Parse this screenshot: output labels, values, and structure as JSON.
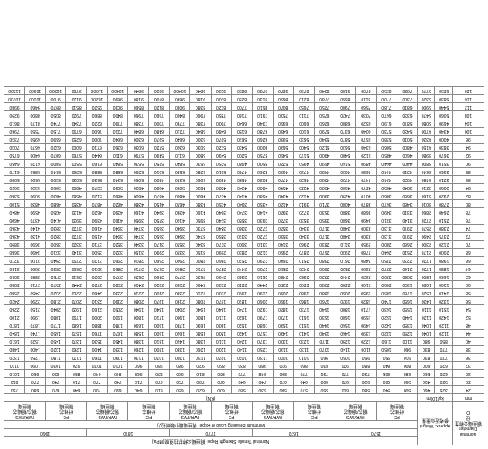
{
  "header": {
    "diameter_en": "Nominal Diameter",
    "diameter_cn": "钢丝绳公称直径",
    "weight_en": "Approx. Weight",
    "weight_cn": "参考近似重量",
    "strength_en": "Nominal Tensile Strength Rope",
    "strength_cn": "钢丝绳公称抗拉强度(MPa)",
    "breaking_en": "Minimum Breaking Load of Rope",
    "breaking_cn": "钢丝绳最小破断拉力",
    "d_symbol": "D",
    "unit_d": "mm",
    "unit_w": "kg/100m",
    "unit_load": "(KN)",
    "strengths": [
      "1570",
      "1670",
      "1770",
      "1870",
      "1960"
    ],
    "fc_en": "FC",
    "fc_cn": "纤维芯",
    "iwr_en": "IWR/IWS",
    "iwr_cn": "钢芯/钢绳芯",
    "rope_cn": "钢丝绳"
  },
  "rows": [
    {
      "d": "24",
      "w": [
        "325",
        "460"
      ],
      "v": [
        "500",
        "540",
        "580",
        "600",
        "550",
        "570",
        "580",
        "630",
        "580",
        "600",
        "620",
        "650",
        "610",
        "640",
        "650",
        "700",
        "640",
        "670",
        "680",
        "750"
      ]
    },
    {
      "d": "26",
      "w": [
        "520",
        "450"
      ],
      "v": [
        "560",
        "600",
        "630",
        "670",
        "600",
        "640",
        "670",
        "740",
        "640",
        "670",
        "700",
        "750",
        "670",
        "710",
        "740",
        "770",
        "710",
        "740",
        "770",
        "810"
      ]
    },
    {
      "d": "30",
      "w": [
        "620",
        "560"
      ],
      "v": [
        "680",
        "605",
        "730",
        "770",
        "730",
        "770",
        "800",
        "848",
        "770",
        "820",
        "810",
        "900",
        "820",
        "968",
        "840",
        "940",
        "850",
        "900",
        "950",
        "1010"
      ]
    },
    {
      "d": "32",
      "w": [
        "620",
        "600"
      ],
      "v": [
        "800",
        "840",
        "880",
        "920",
        "830",
        "860",
        "920",
        "980",
        "830",
        "860",
        "920",
        "980",
        "980",
        "960",
        "1010",
        "1070",
        "970",
        "1030",
        "1090",
        "1110"
      ]
    },
    {
      "d": "36",
      "w": [
        "770",
        "830"
      ],
      "v": [
        "910",
        "950",
        "950",
        "1050",
        "960",
        "1010",
        "1070",
        "1130",
        "1020",
        "1070",
        "1130",
        "1200",
        "1070",
        "1130",
        "1190",
        "1260",
        "1120",
        "1180",
        "1250",
        "1320"
      ]
    },
    {
      "d": "38",
      "w": [
        "770",
        "830"
      ],
      "v": [
        "960",
        "1050",
        "1100",
        "1140",
        "1070",
        "1130",
        "1190",
        "1250",
        "1140",
        "1200",
        "1260",
        "1330",
        "1200",
        "1260",
        "1330",
        "1400",
        "1260",
        "1320",
        "1400",
        "1480"
      ]
    },
    {
      "d": "40",
      "w": [
        "850",
        "980"
      ],
      "v": [
        "1100",
        "1160",
        "1220",
        "1290",
        "1170",
        "1230",
        "1300",
        "1370",
        "1240",
        "1310",
        "1380",
        "1450",
        "1310",
        "1380",
        "1450",
        "1530",
        "1370",
        "1450",
        "1520",
        "1610"
      ]
    },
    {
      "d": "44",
      "w": [
        "1120",
        "1040"
      ],
      "v": [
        "1250",
        "1320",
        "1390",
        "1460",
        "1340",
        "1410",
        "1490",
        "1570",
        "1420",
        "1500",
        "1580",
        "1660",
        "1500",
        "1580",
        "1670",
        "1760",
        "1570",
        "1650",
        "1740",
        "1840"
      ]
    },
    {
      "d": "48",
      "w": [
        "1120",
        "1040"
      ],
      "v": [
        "1350",
        "1420",
        "1490",
        "1560",
        "1440",
        "1510",
        "1590",
        "1680",
        "1520",
        "1600",
        "1690",
        "1780",
        "1600",
        "1690",
        "1780",
        "1880",
        "1680",
        "1770",
        "1870",
        "1870"
      ]
    },
    {
      "d": "52",
      "w": [
        "1420",
        "1120"
      ],
      "v": [
        "1440",
        "1520",
        "1590",
        "1680",
        "1530",
        "1610",
        "1700",
        "1790",
        "1620",
        "1710",
        "1800",
        "1900",
        "1710",
        "1800",
        "1900",
        "2000",
        "1790",
        "1880",
        "1990",
        "2100"
      ]
    },
    {
      "d": "54",
      "w": [
        "1510",
        "1110"
      ],
      "v": [
        "1550",
        "1630",
        "1710",
        "1800",
        "1640",
        "1730",
        "1820",
        "1920",
        "1740",
        "1840",
        "1940",
        "2040",
        "1840",
        "1940",
        "2050",
        "2160",
        "1930",
        "2040",
        "2150",
        "2260"
      ]
    },
    {
      "d": "56",
      "w": [
        "1320",
        "1430"
      ],
      "v": [
        "1650",
        "1740",
        "1820",
        "1920",
        "1760",
        "1860",
        "1960",
        "2060",
        "1870",
        "1970",
        "2080",
        "2190",
        "1970",
        "2080",
        "2190",
        "2310",
        "2070",
        "2180",
        "2290",
        "2420"
      ]
    },
    {
      "d": "58",
      "w": [
        "1410",
        "1520"
      ],
      "v": [
        "1760",
        "1850",
        "1950",
        "2050",
        "1880",
        "1980",
        "2080",
        "2190",
        "1990",
        "2100",
        "2210",
        "2330",
        "2100",
        "2210",
        "2330",
        "2460",
        "2200",
        "2320",
        "2450",
        "2580"
      ]
    },
    {
      "d": "60",
      "w": [
        "1560",
        "1680"
      ],
      "v": [
        "1950",
        "2060",
        "2160",
        "2280",
        "2080",
        "2200",
        "2320",
        "2440",
        "2210",
        "2330",
        "2460",
        "2590",
        "2330",
        "2450",
        "2580",
        "2720",
        "2440",
        "2570",
        "2710",
        "2860"
      ]
    },
    {
      "d": "62",
      "w": [
        "1660",
        "1800"
      ],
      "v": [
        "2080",
        "2200",
        "2320",
        "2440",
        "2220",
        "2350",
        "2480",
        "2610",
        "2360",
        "2490",
        "2620",
        "2770",
        "2490",
        "2620",
        "2770",
        "2920",
        "2610",
        "2750",
        "2880",
        "3060"
      ]
    },
    {
      "d": "64",
      "w": [
        "1880",
        "1720"
      ],
      "v": [
        "2160",
        "2270",
        "2390",
        "2520",
        "2300",
        "2420",
        "2560",
        "2700",
        "2440",
        "2570",
        "2710",
        "2860",
        "2570",
        "2710",
        "2860",
        "3010",
        "2690",
        "2830",
        "2990",
        "3150"
      ]
    },
    {
      "d": "66",
      "w": [
        "1980",
        "1720"
      ],
      "v": [
        "2230",
        "2350",
        "2480",
        "2610",
        "2380",
        "2510",
        "2640",
        "2790",
        "2520",
        "2660",
        "2800",
        "2960",
        "2660",
        "2810",
        "2960",
        "3120",
        "2790",
        "2940",
        "3100",
        "3270"
      ]
    },
    {
      "d": "68",
      "w": [
        "2000",
        "2170"
      ],
      "v": [
        "2510",
        "2640",
        "2780",
        "2930",
        "2670",
        "2870",
        "2960",
        "3120",
        "2830",
        "2990",
        "3150",
        "3320",
        "2990",
        "3150",
        "3320",
        "3500",
        "3140",
        "3310",
        "3490",
        "3680"
      ]
    },
    {
      "d": "70",
      "w": [
        "2120",
        "2300"
      ],
      "v": [
        "2660",
        "2800",
        "2950",
        "3110",
        "2830",
        "2960",
        "3140",
        "3310",
        "3000",
        "3170",
        "3340",
        "3520",
        "3170",
        "3340",
        "3520",
        "3710",
        "3320",
        "3500",
        "3690",
        "3890"
      ]
    },
    {
      "d": "72",
      "w": [
        "2375",
        "2490"
      ],
      "v": [
        "2970",
        "3130",
        "3300",
        "3480",
        "3170",
        "3340",
        "3530",
        "3720",
        "3370",
        "3550",
        "3740",
        "3940",
        "3550",
        "3740",
        "3940",
        "4150",
        "3720",
        "3920",
        "4130",
        "4360"
      ]
    },
    {
      "d": "74",
      "w": [
        "2380",
        "2570"
      ],
      "v": [
        "2970",
        "3130",
        "3300",
        "3480",
        "3170",
        "3340",
        "3520",
        "3720",
        "3360",
        "3540",
        "3730",
        "3940",
        "3550",
        "3740",
        "3940",
        "4160",
        "3720",
        "3930",
        "4140",
        "4360"
      ]
    },
    {
      "d": "76",
      "w": [
        "2510",
        "2720"
      ],
      "v": [
        "3140",
        "3310",
        "3490",
        "3680",
        "3350",
        "3530",
        "3720",
        "3930",
        "3550",
        "3740",
        "3950",
        "4160",
        "3750",
        "3950",
        "4160",
        "4390",
        "3930",
        "4140",
        "4370",
        "4600"
      ]
    },
    {
      "d": "78",
      "w": [
        "2640",
        "2860"
      ],
      "v": [
        "3310",
        "3490",
        "3680",
        "3880",
        "3530",
        "3720",
        "3920",
        "4140",
        "3740",
        "3940",
        "4160",
        "4390",
        "3940",
        "4160",
        "4390",
        "4620",
        "4130",
        "4350",
        "4590",
        "4840"
      ]
    },
    {
      "d": "80",
      "w": [
        "2780",
        "3010"
      ],
      "v": [
        "3480",
        "3670",
        "3870",
        "4080",
        "3710",
        "3910",
        "4120",
        "4350",
        "3940",
        "4150",
        "4380",
        "4620",
        "4150",
        "4380",
        "4620",
        "4870",
        "4350",
        "4580",
        "4830",
        "5100"
      ]
    },
    {
      "d": "82",
      "w": [
        "2920",
        "3160"
      ],
      "v": [
        "3660",
        "3860",
        "4070",
        "4290",
        "3900",
        "4120",
        "4340",
        "4580",
        "4140",
        "4370",
        "4600",
        "4860",
        "4370",
        "4600",
        "4860",
        "5120",
        "4580",
        "4830",
        "5090",
        "5360"
      ]
    },
    {
      "d": "84",
      "w": [
        "3060",
        "3210"
      ],
      "v": [
        "3840",
        "4050",
        "4270",
        "4500",
        "4000",
        "4320",
        "4540",
        "4800",
        "4340",
        "4580",
        "4830",
        "5090",
        "4580",
        "4830",
        "5090",
        "5370",
        "4800",
        "5060",
        "5330",
        "5620"
      ]
    },
    {
      "d": "86",
      "w": [
        "3210",
        "3480"
      ],
      "v": [
        "4020",
        "4240",
        "4470",
        "4720",
        "4290",
        "4520",
        "4770",
        "5030",
        "4550",
        "4800",
        "5060",
        "5340",
        "4800",
        "5060",
        "5340",
        "5630",
        "5030",
        "5300",
        "5590",
        "5900"
      ]
    },
    {
      "d": "88",
      "w": [
        "3360",
        "3640"
      ],
      "v": [
        "4210",
        "4440",
        "4680",
        "4930",
        "4490",
        "4730",
        "4990",
        "5260",
        "4760",
        "5010",
        "5280",
        "5580",
        "5010",
        "5290",
        "5580",
        "5880",
        "5260",
        "5540",
        "5850",
        "6170"
      ]
    },
    {
      "d": "90",
      "w": [
        "3510",
        "3800"
      ],
      "v": [
        "4400",
        "4640",
        "4890",
        "5160",
        "4690",
        "4950",
        "5220",
        "5500",
        "4980",
        "5250",
        "5530",
        "5840",
        "5250",
        "5530",
        "5840",
        "6160",
        "5500",
        "5800",
        "6120",
        "6450"
      ]
    },
    {
      "d": "92",
      "w": [
        "3670",
        "3980"
      ],
      "v": [
        "4600",
        "4850",
        "5120",
        "5400",
        "4900",
        "5170",
        "5460",
        "5750",
        "5200",
        "5490",
        "5800",
        "6110",
        "5490",
        "5790",
        "6110",
        "6440",
        "5760",
        "6070",
        "6400",
        "6750"
      ]
    },
    {
      "d": "94",
      "w": [
        "3830",
        "4150"
      ],
      "v": [
        "4800",
        "5060",
        "5340",
        "5630",
        "5120",
        "5400",
        "5690",
        "6000",
        "5430",
        "5720",
        "6030",
        "6360",
        "5720",
        "6030",
        "6360",
        "6710",
        "6000",
        "6320",
        "6670",
        "7030"
      ]
    },
    {
      "d": "96",
      "w": [
        "4000",
        "4330"
      ],
      "v": [
        "5010",
        "5280",
        "5570",
        "5870",
        "5340",
        "5630",
        "5930",
        "6260",
        "5670",
        "5970",
        "6300",
        "6640",
        "5970",
        "6300",
        "6640",
        "7000",
        "6250",
        "6590",
        "6950",
        "7330"
      ]
    },
    {
      "d": "100",
      "w": [
        "4340",
        "4700"
      ],
      "v": [
        "5430",
        "5730",
        "6040",
        "6370",
        "5790",
        "6100",
        "6430",
        "6780",
        "6150",
        "6480",
        "6840",
        "7210",
        "6480",
        "6840",
        "7210",
        "7600",
        "6790",
        "7150",
        "7550",
        "7960"
      ]
    },
    {
      "d": "104",
      "w": [
        "4690",
        "5080"
      ],
      "v": [
        "5870",
        "6190",
        "6520",
        "6880",
        "6260",
        "6600",
        "6960",
        "7340",
        "6640",
        "7000",
        "7380",
        "7790",
        "7000",
        "7380",
        "7790",
        "8220",
        "7340",
        "7740",
        "8170",
        "8610"
      ]
    },
    {
      "d": "108",
      "w": [
        "5060",
        "5470"
      ],
      "v": [
        "6330",
        "6670",
        "7030",
        "7420",
        "6750",
        "7110",
        "7500",
        "7910",
        "7160",
        "7550",
        "7960",
        "8400",
        "7560",
        "7960",
        "8400",
        "8860",
        "7920",
        "8350",
        "8800",
        "9290"
      ]
    },
    {
      "d": "112",
      "w": [
        "5440",
        "5900"
      ],
      "v": [
        "6810",
        "7180",
        "7560",
        "7980",
        "7250",
        "7650",
        "8070",
        "8510",
        "7700",
        "8120",
        "8380",
        "9030",
        "8120",
        "8560",
        "9030",
        "9520",
        "8510",
        "8970",
        "9460",
        "9980"
      ]
    },
    {
      "d": "116",
      "w": [
        "5830",
        "6320"
      ],
      "v": [
        "7300",
        "7700",
        "8110",
        "8550",
        "7780",
        "8210",
        "8650",
        "9130",
        "8250",
        "8700",
        "9180",
        "9690",
        "8700",
        "9180",
        "9690",
        "10200",
        "9120",
        "9700",
        "10100",
        "10700"
      ]
    },
    {
      "d": "120",
      "w": [
        "6250",
        "6770"
      ],
      "v": [
        "7820",
        "8250",
        "8700",
        "9180",
        "8340",
        "8790",
        "9270",
        "9780",
        "8850",
        "9330",
        "9840",
        "10400",
        "9330",
        "9840",
        "10400",
        "11000",
        "9780",
        "10300",
        "10900",
        "11500"
      ]
    }
  ]
}
